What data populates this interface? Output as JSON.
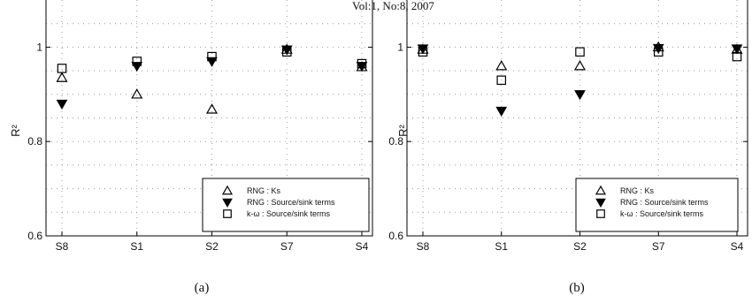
{
  "header_text": "Vol:1, No:8, 2007",
  "colors": {
    "marker": "#000000",
    "grid": "#9a9a9a",
    "background": "#ffffff"
  },
  "chart_data": [
    {
      "type": "scatter",
      "caption": "(a)",
      "categories": [
        "S8",
        "S1",
        "S2",
        "S7",
        "S4"
      ],
      "ylabel": "R²",
      "ylim": [
        0.6,
        1.1
      ],
      "yticks": [
        "0.6",
        "0.8",
        "1"
      ],
      "grid": true,
      "legend_position": "bottom-right",
      "series": [
        {
          "name": "RNG : Ks",
          "marker": "triangle-up-open",
          "values": [
            0.935,
            0.9,
            0.868,
            0.995,
            0.958
          ]
        },
        {
          "name": "RNG : Source/sink terms",
          "marker": "triangle-down-filled",
          "values": [
            0.88,
            0.96,
            0.97,
            0.995,
            0.96
          ]
        },
        {
          "name": "k-ω : Source/sink terms",
          "marker": "square-open",
          "values": [
            0.955,
            0.97,
            0.98,
            0.99,
            0.965
          ]
        }
      ]
    },
    {
      "type": "scatter",
      "caption": "(b)",
      "categories": [
        "S8",
        "S1",
        "S2",
        "S7",
        "S4"
      ],
      "ylabel": "R²",
      "ylim": [
        0.6,
        1.1
      ],
      "yticks": [
        "0.6",
        "0.8",
        "1"
      ],
      "grid": true,
      "legend_position": "bottom-right",
      "series": [
        {
          "name": "RNG : Ks",
          "marker": "triangle-up-open",
          "values": [
            0.995,
            0.96,
            0.96,
            1.0,
            0.995
          ]
        },
        {
          "name": "RNG : Source/sink terms",
          "marker": "triangle-down-filled",
          "values": [
            0.997,
            0.865,
            0.9,
            0.998,
            0.997
          ]
        },
        {
          "name": "k-ω : Source/sink terms",
          "marker": "square-open",
          "values": [
            0.99,
            0.93,
            0.99,
            0.99,
            0.98
          ]
        }
      ]
    }
  ]
}
